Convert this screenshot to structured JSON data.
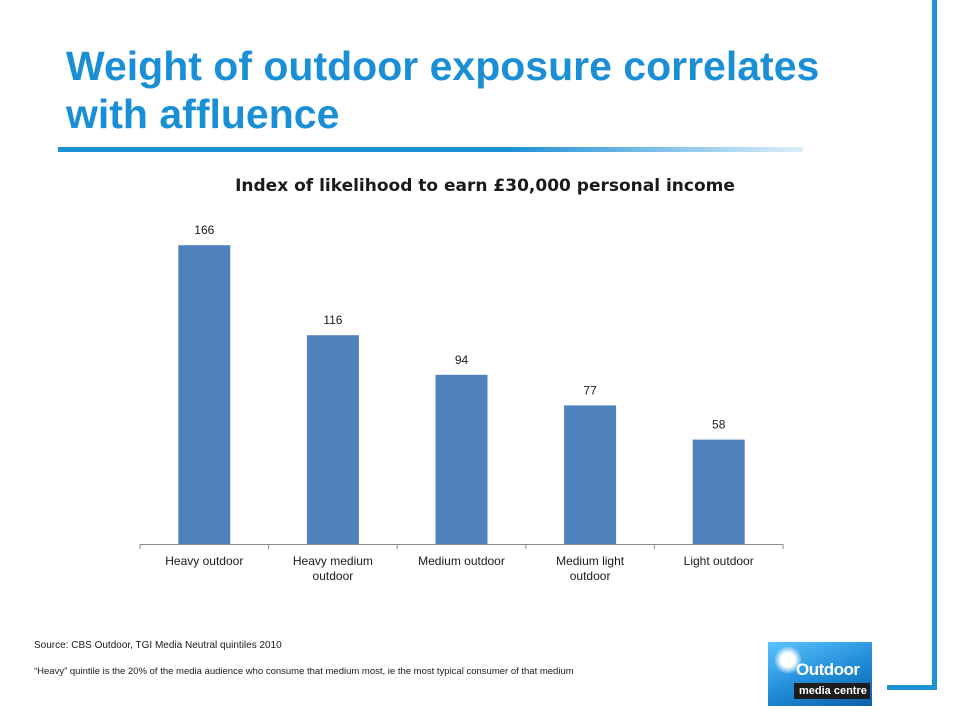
{
  "slide": {
    "title": "Weight of outdoor exposure correlates with affluence",
    "source": "Source: CBS Outdoor, TGI Media Neutral quintiles 2010",
    "note": "“Heavy” quintile is the 20% of the media audience who consume that medium most, ie the most typical consumer of that medium"
  },
  "logo": {
    "line1": "Outdoor",
    "line2": "media centre"
  },
  "colors": {
    "accent": "#1b8fd6",
    "bar": "#4f81bd"
  },
  "chart_data": {
    "type": "bar",
    "title": "Index of likelihood to earn £30,000 personal income",
    "categories": [
      [
        "Heavy outdoor"
      ],
      [
        "Heavy medium",
        "outdoor"
      ],
      [
        "Medium outdoor"
      ],
      [
        "Medium light",
        "outdoor"
      ],
      [
        "Light outdoor"
      ]
    ],
    "values": [
      166,
      116,
      94,
      77,
      58
    ],
    "data_labels": [
      "166",
      "116",
      "94",
      "77",
      "58"
    ],
    "ylim": [
      0,
      180
    ],
    "grid": false,
    "legend": "none"
  }
}
